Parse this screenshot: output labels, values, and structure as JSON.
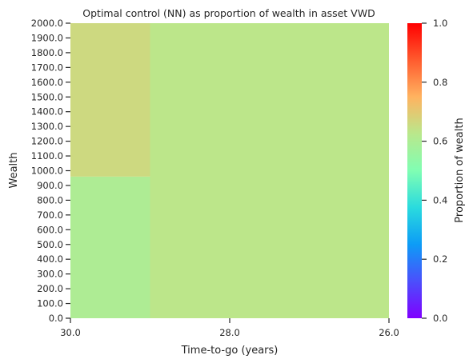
{
  "chart_data": {
    "type": "heatmap",
    "title": "Optimal control (NN) as proportion of wealth in asset VWD",
    "xlabel": "Time-to-go (years)",
    "ylabel": "Wealth",
    "x_ticks": [
      "30.0",
      "28.0",
      "26.0"
    ],
    "x_tick_values": [
      30,
      28,
      26
    ],
    "x_range": [
      30,
      26
    ],
    "y_ticks": [
      "0.0",
      "100.0",
      "200.0",
      "300.0",
      "400.0",
      "500.0",
      "600.0",
      "700.0",
      "800.0",
      "900.0",
      "1000.0",
      "1100.0",
      "1200.0",
      "1300.0",
      "1400.0",
      "1500.0",
      "1600.0",
      "1700.0",
      "1800.0",
      "1900.0",
      "2000.0"
    ],
    "y_range": [
      0,
      2000
    ],
    "colorbar": {
      "label": "Proportion of wealth",
      "ticks": [
        "0.0",
        "0.2",
        "0.4",
        "0.6",
        "0.8",
        "1.0"
      ],
      "range": [
        0,
        1
      ],
      "colormap": "rainbow"
    },
    "cells": [
      {
        "x": [
          30,
          29
        ],
        "y": [
          0,
          960
        ],
        "value": 0.6
      },
      {
        "x": [
          30,
          29
        ],
        "y": [
          960,
          2000
        ],
        "value": 0.66
      },
      {
        "x": [
          29,
          26
        ],
        "y": [
          0,
          2000
        ],
        "value": 0.63
      }
    ]
  }
}
